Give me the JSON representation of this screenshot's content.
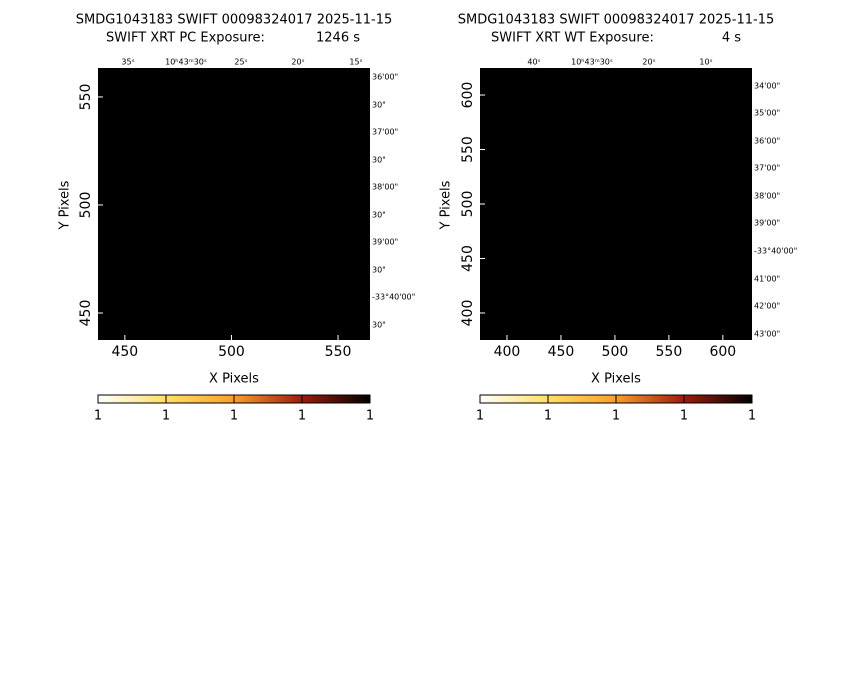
{
  "panels": [
    {
      "title": "SMDG1043183 SWIFT 00098324017 2025-11-15",
      "subtitle": "SWIFT XRT PC Exposure:",
      "exposure": "1246 s",
      "x_label": "X Pixels",
      "y_label": "Y Pixels",
      "xlim": [
        437.4,
        565
      ],
      "xticks": [
        450,
        500,
        550
      ],
      "ylim": [
        437.5,
        563.4
      ],
      "yticks": [
        450,
        500,
        550
      ],
      "ra_labels": [
        "35ˢ",
        "10ʰ43ᵐ30ˢ",
        "25ˢ",
        "20ˢ",
        "15ˢ"
      ],
      "dec_labels": [
        "36'00\"",
        "30\"",
        "37'00\"",
        "30\"",
        "38'00\"",
        "30\"",
        "39'00\"",
        "30\"",
        "-33°40'00\"",
        "30\""
      ],
      "colorbar_labels": [
        1,
        1,
        1,
        1,
        1
      ]
    },
    {
      "title": "SMDG1043183 SWIFT 00098324017 2025-11-15",
      "subtitle": "SWIFT XRT WT Exposure:",
      "exposure": "4 s",
      "x_label": "X Pixels",
      "y_label": "Y Pixels",
      "xlim": [
        375,
        627
      ],
      "xticks": [
        400,
        450,
        500,
        550,
        600
      ],
      "ylim": [
        375.2,
        624.8
      ],
      "yticks": [
        400,
        450,
        500,
        550,
        600
      ],
      "ra_labels": [
        "40ˢ",
        "10ʰ43ᵐ30ˢ",
        "20ˢ",
        "10ˢ"
      ],
      "dec_labels": [
        "34'00\"",
        "35'00\"",
        "36'00\"",
        "37'00\"",
        "38'00\"",
        "39'00\"",
        "-33°40'00\"",
        "41'00\"",
        "42'00\"",
        "43'00\""
      ],
      "colorbar_labels": [
        1,
        1,
        1,
        1,
        1
      ]
    }
  ]
}
